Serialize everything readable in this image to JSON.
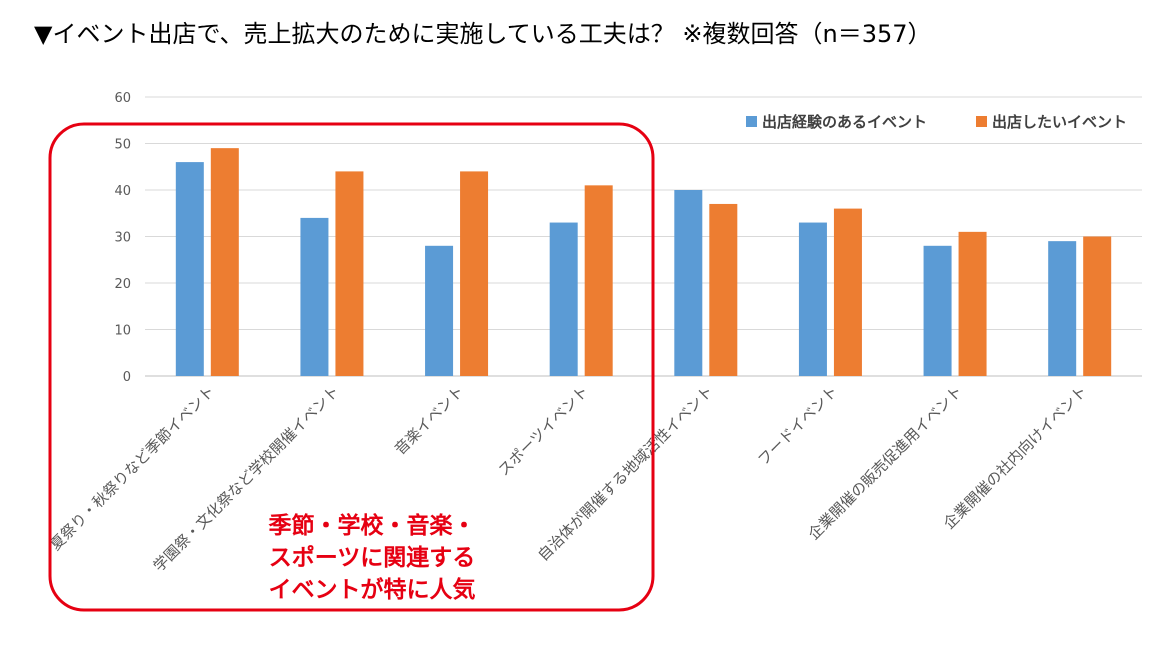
{
  "title": "▼イベント出店で、売上拡大のために実施している工夫は？ ※複数回答（n＝357）",
  "chart_data": {
    "type": "bar",
    "categories": [
      "夏祭り・秋祭りなど季節イベント",
      "学園祭・文化祭など学校開催イベント",
      "音楽イベント",
      "スポーツイベント",
      "自治体が開催する地域活性イベント",
      "フードイベント",
      "企業開催の販売促進用イベント",
      "企業開催の社内向けイベント"
    ],
    "series": [
      {
        "name": "出店経験のあるイベント",
        "color": "#5b9bd5",
        "values": [
          46,
          34,
          28,
          33,
          40,
          33,
          28,
          29
        ]
      },
      {
        "name": "出店したいイベント",
        "color": "#ed7d31",
        "values": [
          49,
          44,
          44,
          41,
          37,
          36,
          31,
          30
        ]
      }
    ],
    "ylim": [
      0,
      60
    ],
    "yticks": [
      0,
      10,
      20,
      30,
      40,
      50,
      60
    ],
    "legend_position": "top-right",
    "grid": true
  },
  "annotation": {
    "color": "#e60012",
    "lines": [
      "季節・学校・音楽・",
      "スポーツに関連する",
      "イベントが特に人気"
    ]
  }
}
